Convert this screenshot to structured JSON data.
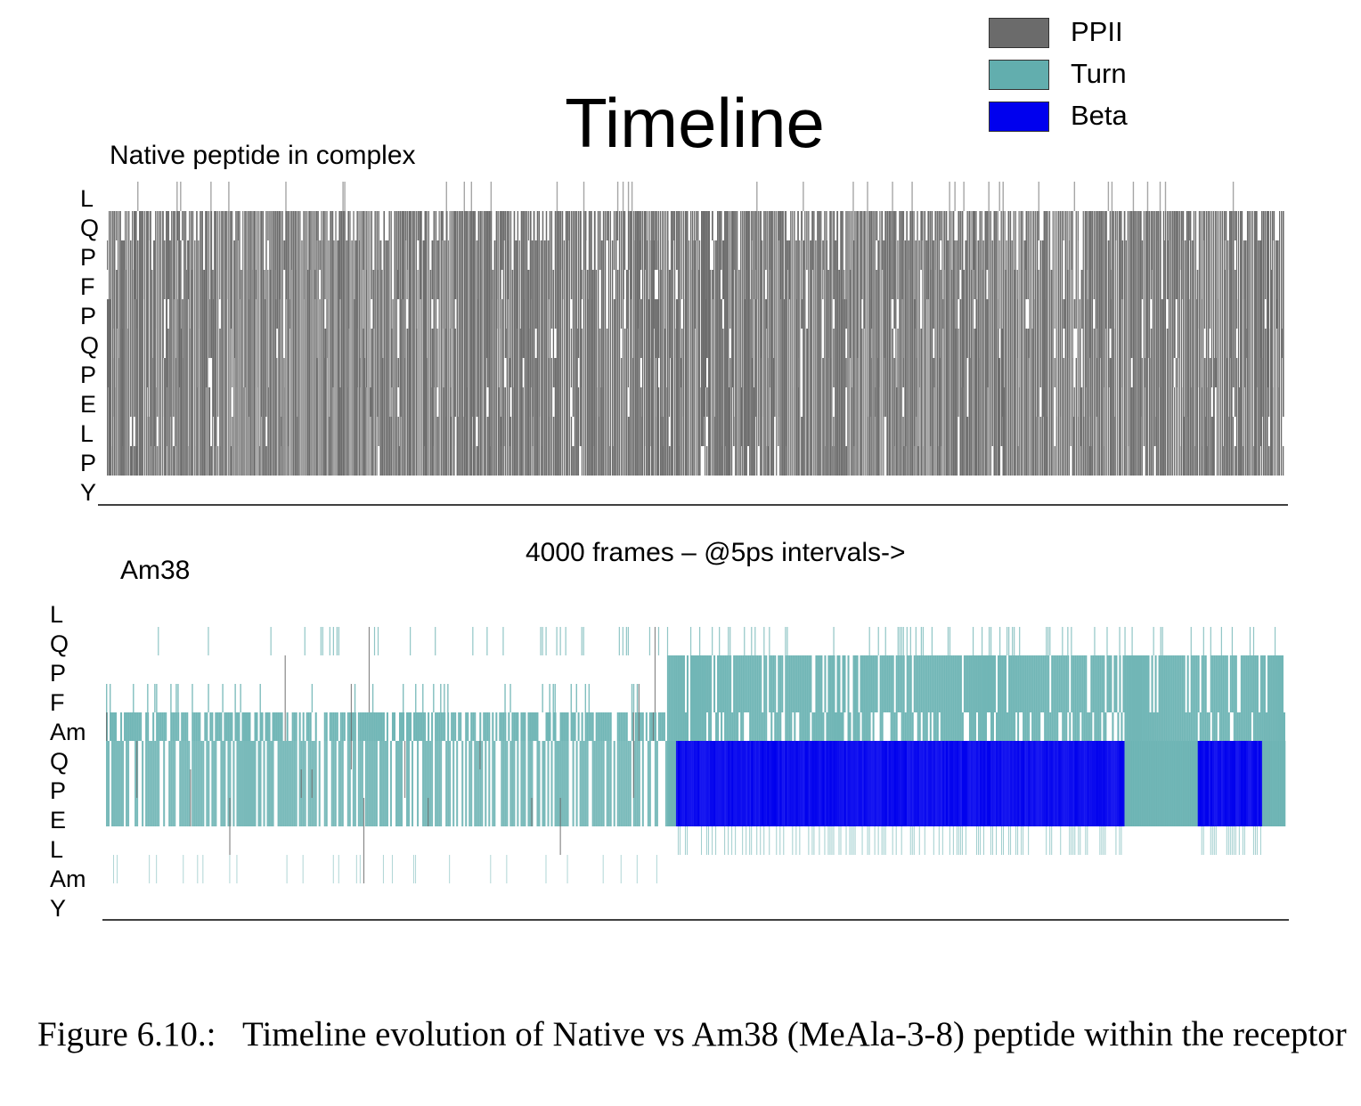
{
  "chart_data": {
    "type": "heatmap",
    "title": "Timeline",
    "xlabel": "4000 frames – @5ps intervals->",
    "legend": {
      "placement": "top-right",
      "entries": [
        {
          "label": "PPII",
          "color": "#6b6b6b"
        },
        {
          "label": "Turn",
          "color": "#62aeae"
        },
        {
          "label": "Beta",
          "color": "#0000ee"
        }
      ]
    },
    "x_range": [
      0,
      4000
    ],
    "panels": [
      {
        "label": "Native peptide in complex",
        "residues": [
          "L",
          "Q",
          "P",
          "F",
          "P",
          "Q",
          "P",
          "E",
          "L",
          "P",
          "Y"
        ],
        "states_by_residue": [
          "mostly coil, sparse PPII",
          "PPII",
          "PPII",
          "PPII",
          "PPII",
          "PPII",
          "PPII",
          "PPII",
          "PPII",
          "PPII",
          "coil"
        ]
      },
      {
        "label": "Am38",
        "residues": [
          "L",
          "Q",
          "P",
          "F",
          "Am",
          "Q",
          "P",
          "E",
          "L",
          "Am",
          "Y"
        ],
        "states_by_residue": [
          "coil, sparse PPII",
          "coil, sparse Turn/PPII",
          "Turn from ~frame 1900",
          "Turn from ~frame 1900",
          "Turn",
          "Turn then Beta (~1900–3450), Turn (~3450–3700), Beta (~3700–3900), Turn",
          "Turn then Beta (~1900–3450), Turn (~3450–3700), Beta (~3700–3900), Turn",
          "Turn",
          "coil, sparse Turn",
          "coil",
          "coil"
        ]
      }
    ]
  },
  "caption": {
    "label": "Figure 6.10.:",
    "text": "Timeline evolution of Native vs Am38 (MeAla-3-8) peptide within the receptor"
  }
}
